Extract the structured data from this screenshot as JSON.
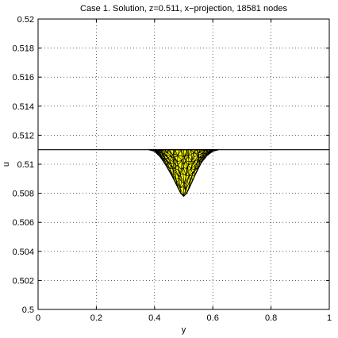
{
  "chart_data": {
    "type": "line",
    "title": "Case 1. Solution, z=0.511, x−projection, 18581 nodes",
    "xlabel": "y",
    "ylabel": "u",
    "xlim": [
      0,
      1
    ],
    "ylim": [
      0.5,
      0.52
    ],
    "xticks": [
      0,
      0.2,
      0.4,
      0.6,
      0.8,
      1
    ],
    "xtick_labels": [
      "0",
      "0.2",
      "0.4",
      "0.6",
      "0.8",
      "1"
    ],
    "yticks": [
      0.5,
      0.502,
      0.504,
      0.506,
      0.508,
      0.51,
      0.512,
      0.514,
      0.516,
      0.518,
      0.52
    ],
    "ytick_labels": [
      "0.5",
      "0.502",
      "0.504",
      "0.506",
      "0.508",
      "0.51",
      "0.512",
      "0.514",
      "0.516",
      "0.518",
      "0.52"
    ],
    "grid": true,
    "baseline_value": 0.511,
    "series": [
      {
        "mesh_profile": {
          "x": [
            0.38,
            0.4,
            0.42,
            0.44,
            0.46,
            0.48,
            0.49,
            0.5,
            0.51,
            0.52,
            0.54,
            0.56,
            0.58,
            0.6,
            0.62
          ],
          "y_min": [
            0.511,
            0.5109,
            0.5105,
            0.5099,
            0.5092,
            0.5084,
            0.508,
            0.5078,
            0.508,
            0.5084,
            0.5093,
            0.5101,
            0.5106,
            0.5109,
            0.511
          ],
          "y_max": [
            0.511,
            0.511,
            0.511,
            0.511,
            0.511,
            0.511,
            0.511,
            0.511,
            0.511,
            0.511,
            0.511,
            0.511,
            0.511,
            0.511,
            0.511
          ]
        },
        "edge_color": "#000000",
        "face_color": "#ffff00"
      }
    ]
  }
}
